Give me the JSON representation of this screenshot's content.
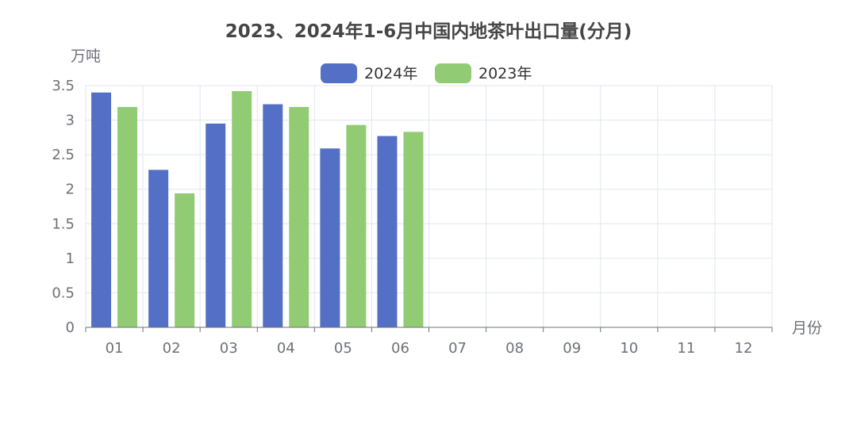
{
  "chart_data": {
    "type": "bar",
    "title": "2023、2024年1-6月中国内地茶叶出口量(分月)",
    "ylabel": "万吨",
    "xlabel": "月份",
    "categories": [
      "01",
      "02",
      "03",
      "04",
      "05",
      "06",
      "07",
      "08",
      "09",
      "10",
      "11",
      "12"
    ],
    "ylim": [
      0,
      3.5
    ],
    "yticks": [
      "0",
      "0.5",
      "1",
      "1.5",
      "2",
      "2.5",
      "3",
      "3.5"
    ],
    "series": [
      {
        "name": "2024年",
        "color": "#5470c6",
        "values": [
          3.4,
          2.28,
          2.95,
          3.23,
          2.59,
          2.77,
          null,
          null,
          null,
          null,
          null,
          null
        ]
      },
      {
        "name": "2023年",
        "color": "#91cc75",
        "values": [
          3.19,
          1.94,
          3.42,
          3.19,
          2.93,
          2.83,
          null,
          null,
          null,
          null,
          null,
          null
        ]
      }
    ],
    "grid": true,
    "legend": "top-center"
  }
}
